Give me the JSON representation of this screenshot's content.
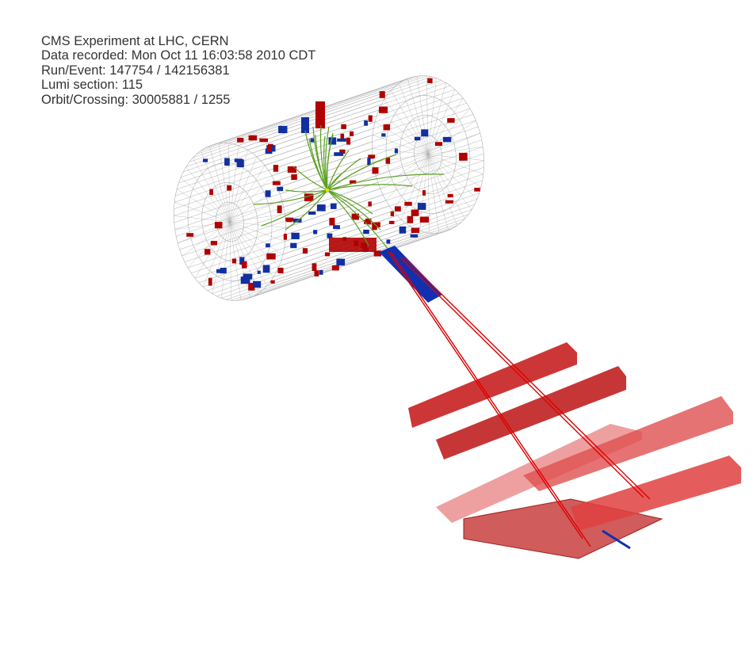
{
  "event_info": {
    "experiment": "CMS Experiment at LHC, CERN",
    "recorded": "Data recorded: Mon Oct 11 16:03:58 2010 CDT",
    "run_event": "Run/Event: 147754 / 142156381",
    "lumi_section": "Lumi section: 115",
    "orbit_crossing": "Orbit/Crossing: 30005881 / 1255"
  },
  "colors": {
    "background": "#ffffff",
    "text": "#333333",
    "wireframe": "#b0b0b0",
    "ecal_deposit": "#b00000",
    "hcal_deposit": "#1030a0",
    "track": "#5aa020",
    "muon_track": "#e00000",
    "muon_chamber": "#e02020"
  }
}
